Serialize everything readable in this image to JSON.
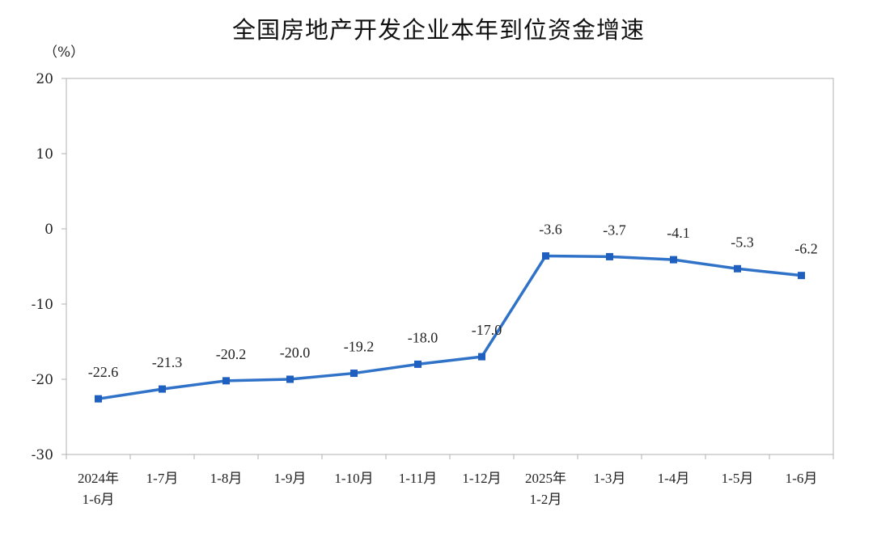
{
  "chart_data": {
    "type": "line",
    "title": "全国房地产开发企业本年到位资金增速",
    "unit": "（%）",
    "categories": [
      [
        "2024年",
        "1-6月"
      ],
      [
        "1-7月"
      ],
      [
        "1-8月"
      ],
      [
        "1-9月"
      ],
      [
        "1-10月"
      ],
      [
        "1-11月"
      ],
      [
        "1-12月"
      ],
      [
        "2025年",
        "1-2月"
      ],
      [
        "1-3月"
      ],
      [
        "1-4月"
      ],
      [
        "1-5月"
      ],
      [
        "1-6月"
      ]
    ],
    "values": [
      -22.6,
      -21.3,
      -20.2,
      -20.0,
      -19.2,
      -18.0,
      -17.0,
      -3.6,
      -3.7,
      -4.1,
      -5.3,
      -6.2
    ],
    "value_labels": [
      "-22.6",
      "-21.3",
      "-20.2",
      "-20.0",
      "-19.2",
      "-18.0",
      "-17.0",
      "-3.6",
      "-3.7",
      "-4.1",
      "-5.3",
      "-6.2"
    ],
    "yticks": [
      20,
      10,
      0,
      -10,
      -20,
      -30
    ],
    "ylim": [
      -30,
      20
    ],
    "grid": false,
    "legend": "none",
    "colors": {
      "line": "#2f72c8",
      "marker": "#1f5fbf",
      "axis": "#b0b0b0"
    }
  }
}
